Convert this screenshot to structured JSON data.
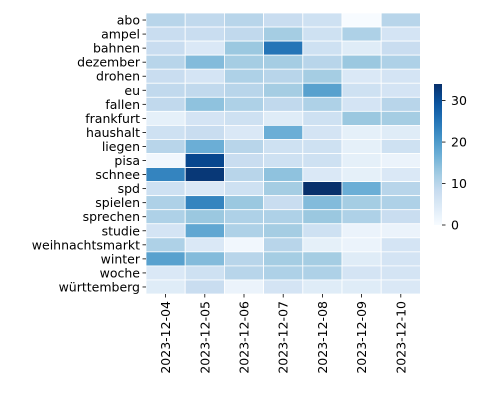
{
  "chart_data": {
    "type": "heatmap",
    "title": "",
    "xlabel": "",
    "ylabel": "",
    "x_categories": [
      "2023-12-04",
      "2023-12-05",
      "2023-12-06",
      "2023-12-07",
      "2023-12-08",
      "2023-12-09",
      "2023-12-10"
    ],
    "y_categories": [
      "abo",
      "ampel",
      "bahnen",
      "dezember",
      "drohen",
      "eu",
      "fallen",
      "frankfurt",
      "haushalt",
      "liegen",
      "pisa",
      "schnee",
      "spd",
      "spielen",
      "sprechen",
      "studie",
      "weihnachtsmarkt",
      "winter",
      "woche",
      "württemberg"
    ],
    "values": [
      [
        10,
        9,
        10,
        8,
        7,
        0,
        10
      ],
      [
        8,
        8,
        9,
        12,
        7,
        11,
        6
      ],
      [
        8,
        5,
        13,
        25,
        7,
        4,
        8
      ],
      [
        10,
        15,
        12,
        12,
        10,
        13,
        11
      ],
      [
        8,
        6,
        11,
        10,
        12,
        5,
        6
      ],
      [
        9,
        9,
        10,
        12,
        19,
        7,
        6
      ],
      [
        9,
        14,
        11,
        9,
        11,
        6,
        10
      ],
      [
        3,
        6,
        7,
        4,
        7,
        13,
        12
      ],
      [
        7,
        8,
        5,
        17,
        6,
        3,
        4
      ],
      [
        10,
        17,
        10,
        7,
        7,
        3,
        7
      ],
      [
        1,
        31,
        8,
        7,
        7,
        3,
        2
      ],
      [
        23,
        33,
        10,
        14,
        5,
        3,
        5
      ],
      [
        7,
        5,
        7,
        12,
        34,
        17,
        10
      ],
      [
        11,
        23,
        13,
        8,
        15,
        12,
        11
      ],
      [
        11,
        13,
        11,
        11,
        13,
        11,
        8
      ],
      [
        6,
        18,
        11,
        12,
        7,
        2,
        2
      ],
      [
        11,
        5,
        1,
        10,
        3,
        2,
        6
      ],
      [
        19,
        15,
        10,
        12,
        12,
        4,
        6
      ],
      [
        5,
        7,
        10,
        11,
        11,
        6,
        6
      ],
      [
        4,
        8,
        2,
        6,
        4,
        4,
        5
      ]
    ],
    "vmin": 0,
    "vmax": 34,
    "colormap": "Blues",
    "colorbar_ticks": [
      0,
      10,
      20,
      30
    ],
    "grid": false,
    "cell_border_color": "#ffffff"
  }
}
